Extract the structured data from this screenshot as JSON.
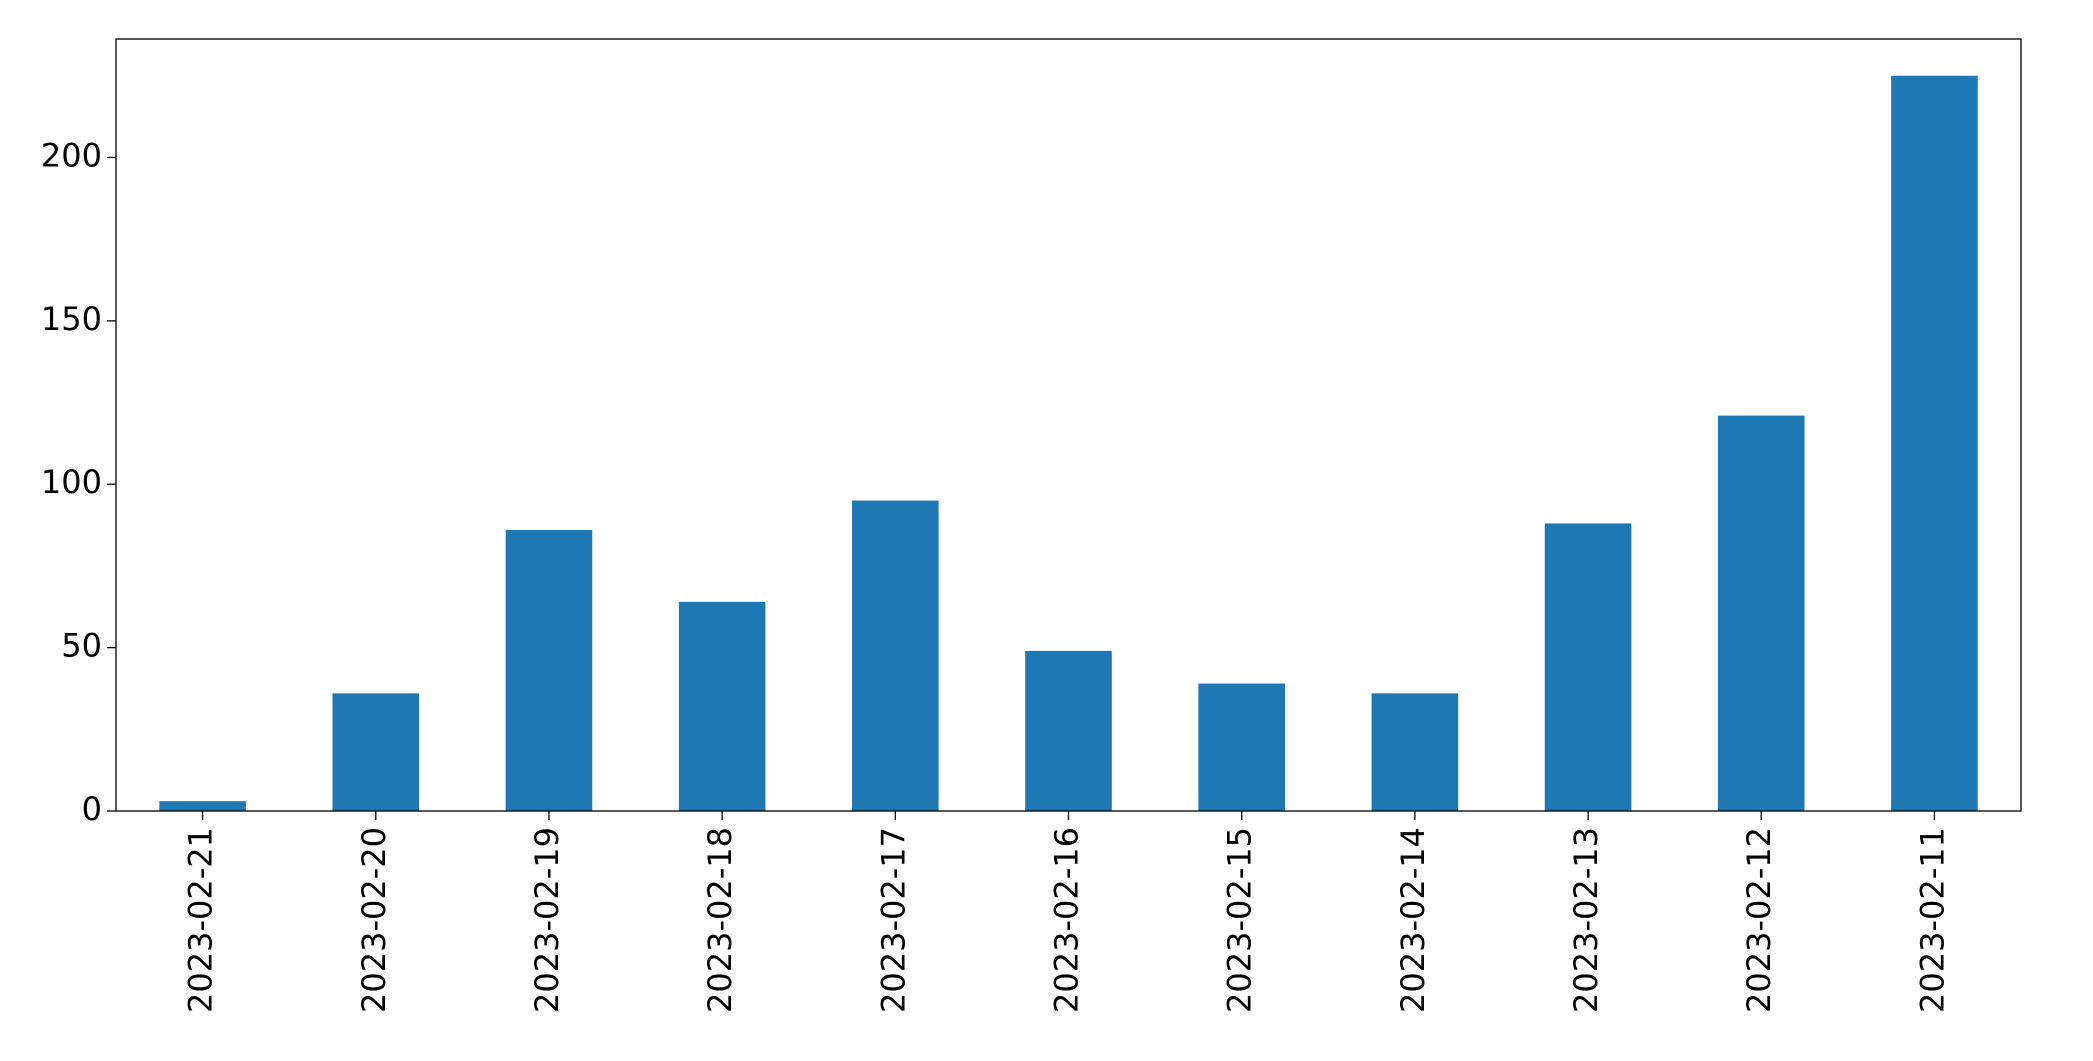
{
  "chart_data": {
    "type": "bar",
    "categories": [
      "2023-02-21",
      "2023-02-20",
      "2023-02-19",
      "2023-02-18",
      "2023-02-17",
      "2023-02-16",
      "2023-02-15",
      "2023-02-14",
      "2023-02-13",
      "2023-02-12",
      "2023-02-11"
    ],
    "values": [
      3,
      36,
      86,
      64,
      95,
      49,
      39,
      36,
      88,
      121,
      225
    ],
    "color": "#1f77b4",
    "ylim": [
      0,
      236.25
    ],
    "yticks": [
      0,
      50,
      100,
      150,
      200
    ],
    "grid": false
  }
}
